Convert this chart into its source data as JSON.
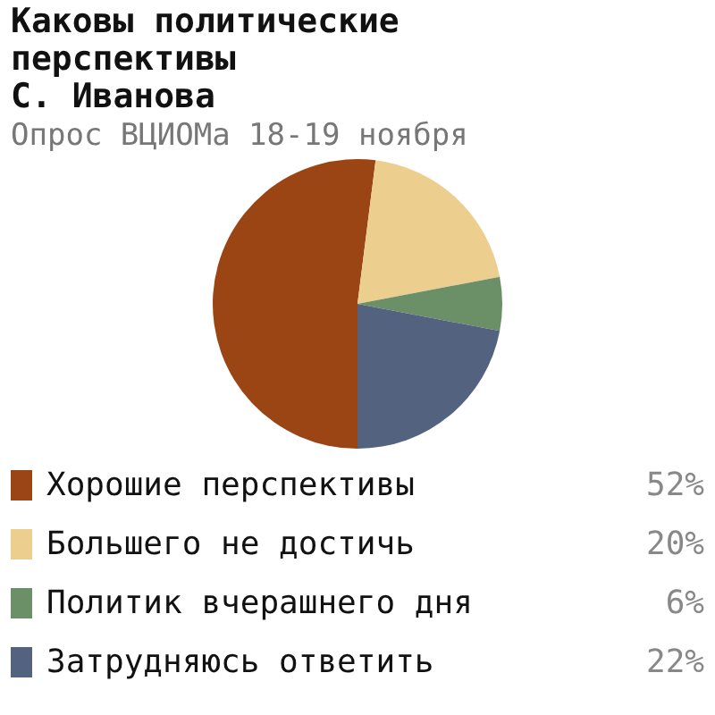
{
  "chart_data": {
    "type": "pie",
    "title": "Каковы политические\nперспективы\nС. Иванова",
    "subtitle": "Опрос ВЦИОМа 18-19 ноября",
    "categories": [
      "Хорошие перспективы",
      "Большего не достичь",
      "Политик вчерашнего дня",
      "Затрудняюсь ответить"
    ],
    "values": [
      52,
      20,
      6,
      22
    ],
    "colors": [
      "#9b4515",
      "#ecce8f",
      "#6b8f66",
      "#53637f"
    ],
    "value_labels": [
      "52%",
      "20%",
      "6%",
      "22%"
    ],
    "legend": "bottom"
  }
}
